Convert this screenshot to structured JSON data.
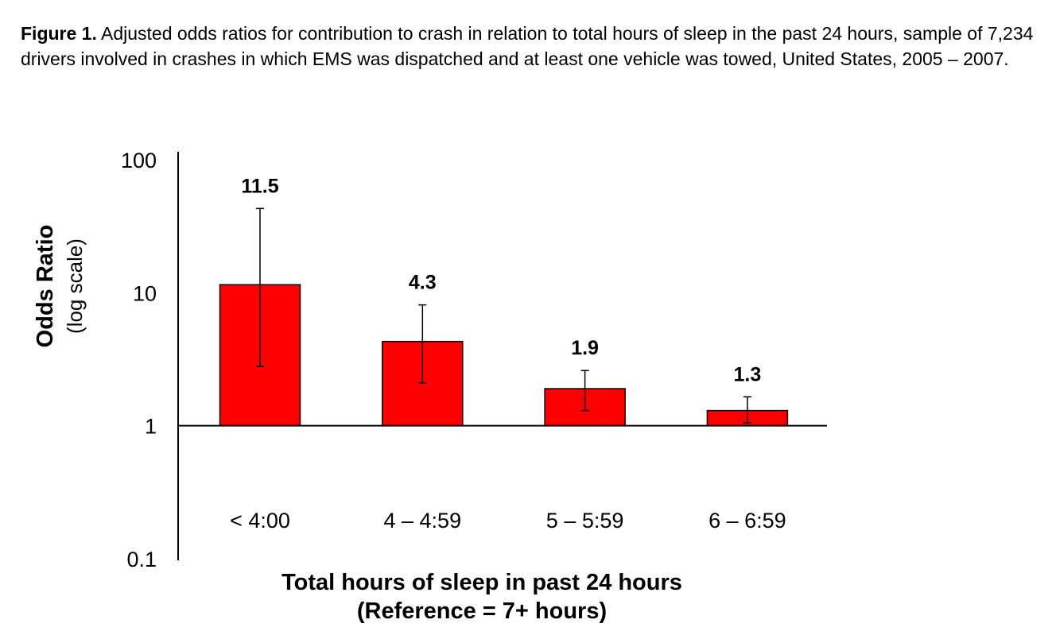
{
  "caption": {
    "label": "Figure 1.",
    "text": "Adjusted odds ratios for contribution to crash in relation to total hours of sleep in the past 24 hours, sample of 7,234 drivers involved in crashes in which EMS was dispatched and at least one vehicle was towed, United States, 2005 – 2007."
  },
  "chart_data": {
    "type": "bar",
    "y_scale": "log",
    "ylabel": "Odds Ratio",
    "ylabel_sub": "(log scale)",
    "xlabel": "Total hours of sleep in past 24 hours",
    "xlabel_sub": "(Reference = 7+ hours)",
    "ylim": [
      0.1,
      100
    ],
    "baseline": 1,
    "y_ticks": [
      100,
      10,
      1,
      0.1
    ],
    "y_tick_labels": [
      "100",
      "10",
      "1",
      "0.1"
    ],
    "categories": [
      "< 4:00",
      "4 – 4:59",
      "5 – 5:59",
      "6 – 6:59"
    ],
    "values": [
      11.5,
      4.3,
      1.9,
      1.3
    ],
    "value_labels": [
      "11.5",
      "4.3",
      "1.9",
      "1.3"
    ],
    "ci_lower": [
      2.8,
      2.1,
      1.3,
      1.05
    ],
    "ci_upper": [
      43,
      8.1,
      2.6,
      1.65
    ],
    "grid": false,
    "legend": "none",
    "bar_color": "#ff0000",
    "bar_edge_color": "#000000"
  }
}
